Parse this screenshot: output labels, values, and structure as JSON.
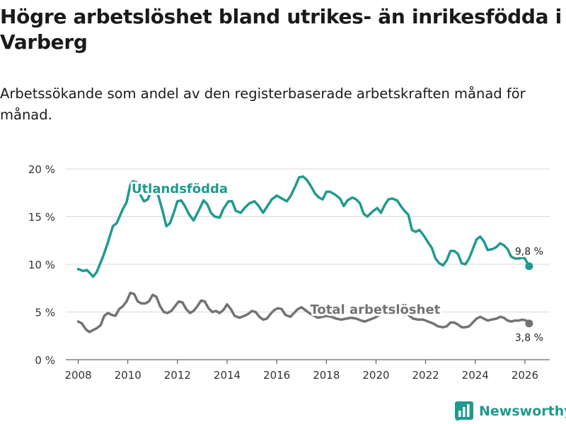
{
  "chart_data": {
    "type": "line",
    "title": "Högre arbetslöshet bland utrikes- än inrikesfödda i Varberg",
    "subtitle": "Arbetssökande som andel av den registerbaserade arbetskraften månad för månad.",
    "xlabel": "",
    "ylabel": "",
    "xlim": [
      2007.5,
      2027.0
    ],
    "ylim": [
      0,
      20
    ],
    "x_ticks": [
      2008,
      2010,
      2012,
      2014,
      2016,
      2018,
      2020,
      2022,
      2024,
      2026
    ],
    "x_tick_labels": [
      "2008",
      "2010",
      "2012",
      "2014",
      "2016",
      "2018",
      "2020",
      "2022",
      "2024",
      "2026"
    ],
    "y_ticks": [
      0,
      5,
      10,
      15,
      20
    ],
    "y_tick_labels": [
      "0 %",
      "5 %",
      "10 %",
      "15 %",
      "20 %"
    ],
    "grid": true,
    "series": [
      {
        "name": "Utlandsfödda",
        "color": "#1f9a8e",
        "end_label": "9,8 %",
        "end_point": [
          2026.17,
          9.8
        ],
        "points": [
          [
            2008.0,
            9.5
          ],
          [
            2008.2,
            9.3
          ],
          [
            2008.35,
            9.4
          ],
          [
            2008.5,
            9.0
          ],
          [
            2008.6,
            8.7
          ],
          [
            2008.75,
            9.2
          ],
          [
            2009.0,
            10.8
          ],
          [
            2009.2,
            12.3
          ],
          [
            2009.4,
            14.0
          ],
          [
            2009.55,
            14.3
          ],
          [
            2009.8,
            15.8
          ],
          [
            2009.95,
            16.5
          ],
          [
            2010.1,
            18.3
          ],
          [
            2010.2,
            18.7
          ],
          [
            2010.35,
            18.6
          ],
          [
            2010.5,
            17.3
          ],
          [
            2010.65,
            16.6
          ],
          [
            2010.8,
            16.8
          ],
          [
            2011.0,
            18.1
          ],
          [
            2011.1,
            18.3
          ],
          [
            2011.25,
            17.0
          ],
          [
            2011.4,
            15.6
          ],
          [
            2011.55,
            14.0
          ],
          [
            2011.7,
            14.3
          ],
          [
            2011.85,
            15.4
          ],
          [
            2012.0,
            16.6
          ],
          [
            2012.15,
            16.7
          ],
          [
            2012.3,
            16.1
          ],
          [
            2012.45,
            15.3
          ],
          [
            2012.65,
            14.6
          ],
          [
            2012.85,
            15.6
          ],
          [
            2013.05,
            16.7
          ],
          [
            2013.2,
            16.3
          ],
          [
            2013.35,
            15.4
          ],
          [
            2013.5,
            15.0
          ],
          [
            2013.7,
            14.9
          ],
          [
            2013.85,
            15.8
          ],
          [
            2014.05,
            16.6
          ],
          [
            2014.2,
            16.6
          ],
          [
            2014.35,
            15.6
          ],
          [
            2014.55,
            15.4
          ],
          [
            2014.7,
            15.9
          ],
          [
            2014.9,
            16.4
          ],
          [
            2015.1,
            16.6
          ],
          [
            2015.25,
            16.2
          ],
          [
            2015.45,
            15.4
          ],
          [
            2015.6,
            16.0
          ],
          [
            2015.8,
            16.8
          ],
          [
            2016.0,
            17.2
          ],
          [
            2016.2,
            16.9
          ],
          [
            2016.4,
            16.6
          ],
          [
            2016.55,
            17.1
          ],
          [
            2016.75,
            18.2
          ],
          [
            2016.9,
            19.1
          ],
          [
            2017.05,
            19.2
          ],
          [
            2017.2,
            18.9
          ],
          [
            2017.35,
            18.3
          ],
          [
            2017.55,
            17.4
          ],
          [
            2017.7,
            17.0
          ],
          [
            2017.85,
            16.8
          ],
          [
            2018.0,
            17.6
          ],
          [
            2018.15,
            17.6
          ],
          [
            2018.35,
            17.3
          ],
          [
            2018.55,
            16.9
          ],
          [
            2018.7,
            16.1
          ],
          [
            2018.85,
            16.7
          ],
          [
            2019.05,
            17.0
          ],
          [
            2019.2,
            16.8
          ],
          [
            2019.35,
            16.4
          ],
          [
            2019.5,
            15.3
          ],
          [
            2019.65,
            15.0
          ],
          [
            2019.85,
            15.5
          ],
          [
            2020.05,
            15.9
          ],
          [
            2020.2,
            15.4
          ],
          [
            2020.35,
            16.2
          ],
          [
            2020.5,
            16.8
          ],
          [
            2020.65,
            16.9
          ],
          [
            2020.85,
            16.7
          ],
          [
            2021.0,
            16.1
          ],
          [
            2021.15,
            15.6
          ],
          [
            2021.3,
            15.2
          ],
          [
            2021.45,
            13.6
          ],
          [
            2021.6,
            13.4
          ],
          [
            2021.75,
            13.6
          ],
          [
            2021.9,
            13.1
          ],
          [
            2022.1,
            12.3
          ],
          [
            2022.25,
            11.7
          ],
          [
            2022.4,
            10.6
          ],
          [
            2022.55,
            10.1
          ],
          [
            2022.7,
            9.9
          ],
          [
            2022.85,
            10.4
          ],
          [
            2023.0,
            11.4
          ],
          [
            2023.15,
            11.4
          ],
          [
            2023.3,
            11.1
          ],
          [
            2023.45,
            10.1
          ],
          [
            2023.6,
            10.0
          ],
          [
            2023.75,
            10.6
          ],
          [
            2023.9,
            11.6
          ],
          [
            2024.05,
            12.6
          ],
          [
            2024.2,
            12.9
          ],
          [
            2024.35,
            12.4
          ],
          [
            2024.5,
            11.5
          ],
          [
            2024.7,
            11.6
          ],
          [
            2024.85,
            11.8
          ],
          [
            2025.0,
            12.2
          ],
          [
            2025.15,
            12.0
          ],
          [
            2025.3,
            11.6
          ],
          [
            2025.45,
            10.8
          ],
          [
            2025.6,
            10.6
          ],
          [
            2025.75,
            10.6
          ],
          [
            2025.9,
            10.7
          ],
          [
            2026.0,
            10.6
          ],
          [
            2026.17,
            9.8
          ]
        ]
      },
      {
        "name": "Total arbetslöshet",
        "color": "#737373",
        "end_label": "3,8 %",
        "end_point": [
          2026.17,
          3.8
        ],
        "points": [
          [
            2008.0,
            4.0
          ],
          [
            2008.15,
            3.8
          ],
          [
            2008.3,
            3.2
          ],
          [
            2008.45,
            2.9
          ],
          [
            2008.6,
            3.1
          ],
          [
            2008.75,
            3.3
          ],
          [
            2008.9,
            3.6
          ],
          [
            2009.05,
            4.6
          ],
          [
            2009.2,
            4.9
          ],
          [
            2009.35,
            4.7
          ],
          [
            2009.5,
            4.6
          ],
          [
            2009.65,
            5.3
          ],
          [
            2009.8,
            5.6
          ],
          [
            2009.95,
            6.1
          ],
          [
            2010.1,
            7.0
          ],
          [
            2010.25,
            6.9
          ],
          [
            2010.4,
            6.1
          ],
          [
            2010.55,
            5.9
          ],
          [
            2010.7,
            5.9
          ],
          [
            2010.85,
            6.1
          ],
          [
            2011.0,
            6.8
          ],
          [
            2011.15,
            6.6
          ],
          [
            2011.3,
            5.6
          ],
          [
            2011.45,
            5.0
          ],
          [
            2011.6,
            4.9
          ],
          [
            2011.75,
            5.1
          ],
          [
            2011.9,
            5.6
          ],
          [
            2012.05,
            6.1
          ],
          [
            2012.2,
            6.0
          ],
          [
            2012.35,
            5.3
          ],
          [
            2012.5,
            4.9
          ],
          [
            2012.65,
            5.1
          ],
          [
            2012.8,
            5.6
          ],
          [
            2012.95,
            6.2
          ],
          [
            2013.1,
            6.1
          ],
          [
            2013.25,
            5.4
          ],
          [
            2013.4,
            5.0
          ],
          [
            2013.55,
            5.1
          ],
          [
            2013.7,
            4.9
          ],
          [
            2013.85,
            5.2
          ],
          [
            2014.0,
            5.8
          ],
          [
            2014.15,
            5.3
          ],
          [
            2014.3,
            4.6
          ],
          [
            2014.5,
            4.4
          ],
          [
            2014.7,
            4.6
          ],
          [
            2014.85,
            4.8
          ],
          [
            2015.0,
            5.1
          ],
          [
            2015.15,
            5.0
          ],
          [
            2015.3,
            4.5
          ],
          [
            2015.45,
            4.2
          ],
          [
            2015.6,
            4.3
          ],
          [
            2015.75,
            4.8
          ],
          [
            2015.9,
            5.2
          ],
          [
            2016.05,
            5.4
          ],
          [
            2016.2,
            5.3
          ],
          [
            2016.35,
            4.7
          ],
          [
            2016.55,
            4.5
          ],
          [
            2016.7,
            4.9
          ],
          [
            2016.85,
            5.3
          ],
          [
            2017.0,
            5.5
          ],
          [
            2017.15,
            5.2
          ],
          [
            2017.3,
            4.9
          ],
          [
            2017.45,
            4.7
          ],
          [
            2017.65,
            4.4
          ],
          [
            2017.85,
            4.5
          ],
          [
            2018.0,
            4.6
          ],
          [
            2018.2,
            4.5
          ],
          [
            2018.4,
            4.3
          ],
          [
            2018.6,
            4.2
          ],
          [
            2018.8,
            4.3
          ],
          [
            2019.0,
            4.4
          ],
          [
            2019.2,
            4.3
          ],
          [
            2019.4,
            4.1
          ],
          [
            2019.55,
            4.0
          ],
          [
            2019.75,
            4.2
          ],
          [
            2019.95,
            4.4
          ],
          [
            2020.15,
            4.7
          ],
          [
            2020.35,
            5.1
          ],
          [
            2020.5,
            5.6
          ],
          [
            2020.65,
            5.6
          ],
          [
            2020.8,
            5.4
          ],
          [
            2020.95,
            5.3
          ],
          [
            2021.1,
            5.1
          ],
          [
            2021.3,
            4.7
          ],
          [
            2021.5,
            4.3
          ],
          [
            2021.7,
            4.2
          ],
          [
            2021.9,
            4.2
          ],
          [
            2022.1,
            4.0
          ],
          [
            2022.3,
            3.8
          ],
          [
            2022.5,
            3.5
          ],
          [
            2022.7,
            3.4
          ],
          [
            2022.85,
            3.5
          ],
          [
            2023.0,
            3.9
          ],
          [
            2023.15,
            3.9
          ],
          [
            2023.3,
            3.7
          ],
          [
            2023.45,
            3.4
          ],
          [
            2023.6,
            3.4
          ],
          [
            2023.75,
            3.5
          ],
          [
            2023.9,
            3.9
          ],
          [
            2024.05,
            4.3
          ],
          [
            2024.2,
            4.5
          ],
          [
            2024.35,
            4.3
          ],
          [
            2024.5,
            4.1
          ],
          [
            2024.65,
            4.2
          ],
          [
            2024.85,
            4.3
          ],
          [
            2025.0,
            4.5
          ],
          [
            2025.15,
            4.4
          ],
          [
            2025.3,
            4.1
          ],
          [
            2025.45,
            4.0
          ],
          [
            2025.6,
            4.1
          ],
          [
            2025.75,
            4.1
          ],
          [
            2025.9,
            4.2
          ],
          [
            2026.05,
            4.1
          ],
          [
            2026.17,
            3.8
          ]
        ]
      }
    ],
    "annotations": [
      {
        "text": "Utlandsfödda",
        "series": 0,
        "x": 2010.15,
        "y": 17.5
      },
      {
        "text": "Total arbetslöshet",
        "series": 1,
        "x": 2017.35,
        "y": 4.8
      }
    ]
  },
  "branding": {
    "name": "Newsworthy",
    "color": "#1f9a8e"
  }
}
